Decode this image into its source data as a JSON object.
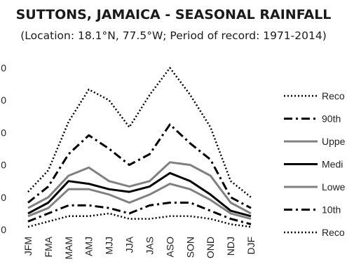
{
  "chart_data": {
    "type": "line",
    "title": "SUTTONS, JAMAICA - SEASONAL RAINFALL",
    "subtitle": "(Location: 18.1°N, 77.5°W; Period of record: 1971-2014)",
    "categories": [
      "JFM",
      "FMA",
      "MAM",
      "AMJ",
      "MJJ",
      "JJA",
      "JAS",
      "ASO",
      "SON",
      "OND",
      "NDJ",
      "DJF"
    ],
    "y_tick_labels": [
      "0",
      "0",
      "0",
      "0",
      "0",
      "0"
    ],
    "ylim": [
      0,
      1500
    ],
    "grid": false,
    "legend_position": "right",
    "series": [
      {
        "name": "Reco",
        "style": "dotted",
        "color": "#000000",
        "values": [
          350,
          550,
          1000,
          1300,
          1200,
          950,
          1250,
          1500,
          1250,
          950,
          450,
          300
        ]
      },
      {
        "name": "90th",
        "style": "dashdot",
        "color": "#000000",
        "values": [
          250,
          400,
          700,
          875,
          750,
          600,
          700,
          975,
          800,
          650,
          300,
          200
        ]
      },
      {
        "name": "Uppe",
        "style": "solid",
        "color": "#808080",
        "values": [
          200,
          300,
          500,
          575,
          450,
          400,
          450,
          625,
          600,
          500,
          250,
          150
        ]
      },
      {
        "name": "Medi",
        "style": "solid",
        "color": "#000000",
        "values": [
          150,
          250,
          450,
          425,
          375,
          350,
          400,
          525,
          450,
          325,
          175,
          125
        ]
      },
      {
        "name": "Lowe",
        "style": "solid",
        "color": "#808080",
        "values": [
          125,
          200,
          375,
          375,
          325,
          250,
          325,
          425,
          375,
          275,
          150,
          100
        ]
      },
      {
        "name": "10th",
        "style": "dashdot",
        "color": "#000000",
        "values": [
          75,
          150,
          225,
          225,
          200,
          150,
          225,
          250,
          250,
          175,
          100,
          50
        ]
      },
      {
        "name": "Reco",
        "style": "dotted",
        "color": "#000000",
        "values": [
          25,
          75,
          125,
          125,
          150,
          100,
          100,
          125,
          125,
          100,
          50,
          25
        ]
      }
    ]
  }
}
